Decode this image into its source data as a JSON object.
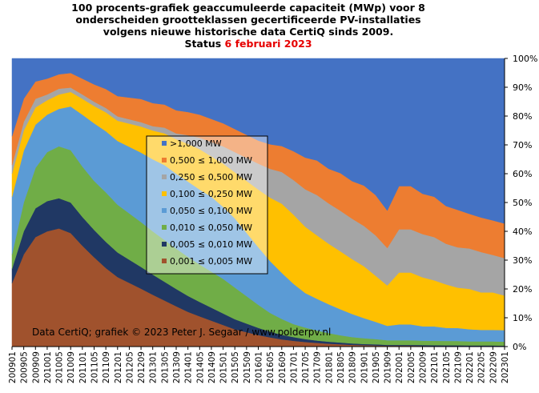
{
  "title": {
    "line1": "100 procents-grafiek geaccumuleerde capaciteit (MWp) voor 8",
    "line2": "onderscheiden grootteklassen gecertificeerde PV-installaties",
    "line3": "volgens nieuwe historische data CertiQ sinds 2009.",
    "status_prefix": "Status",
    "status_date": "6 februari 2023"
  },
  "credit": "Data CertiQ; grafiek © 2023 Peter J. Segaar / www.polderpv.nl",
  "chart_data": {
    "type": "area",
    "stacked": "percent",
    "x": [
      "200901",
      "200905",
      "200909",
      "201001",
      "201005",
      "201009",
      "201101",
      "201105",
      "201109",
      "201201",
      "201205",
      "201209",
      "201301",
      "201305",
      "201309",
      "201401",
      "201405",
      "201409",
      "201501",
      "201505",
      "201509",
      "201601",
      "201605",
      "201609",
      "201701",
      "201705",
      "201709",
      "201801",
      "201805",
      "201809",
      "201901",
      "201905",
      "201909",
      "202001",
      "202005",
      "202009",
      "202101",
      "202105",
      "202109",
      "202201",
      "202205",
      "202209",
      "202301"
    ],
    "ylim": [
      0,
      100
    ],
    "yticks": [
      "0%",
      "10%",
      "20%",
      "30%",
      "40%",
      "50%",
      "60%",
      "70%",
      "80%",
      "90%",
      "100%"
    ],
    "series": [
      {
        "name": "0,001 ≤  0,005 MW",
        "color": "#a0522d",
        "values": [
          22,
          32,
          38,
          40,
          41,
          39,
          35,
          31,
          27,
          24,
          22,
          20,
          18,
          16,
          14,
          12,
          10.5,
          9,
          7.5,
          6,
          5,
          4,
          3.2,
          2.5,
          2,
          1.6,
          1.3,
          1,
          0.8,
          0.6,
          0.5,
          0.4,
          0.3,
          0.3,
          0.3,
          0.25,
          0.2,
          0.2,
          0.2,
          0.15,
          0.15,
          0.15,
          0.1
        ]
      },
      {
        "name": "0,005 ≤  0,010 MW",
        "color": "#203864",
        "values": [
          5,
          8,
          10,
          10.5,
          10.5,
          10.5,
          10,
          9.5,
          9,
          8.5,
          8,
          7.5,
          7,
          6.5,
          6,
          5.5,
          5,
          4.5,
          4,
          3.5,
          3,
          2.5,
          2,
          1.6,
          1.3,
          1,
          0.8,
          0.7,
          0.6,
          0.5,
          0.4,
          0.4,
          0.3,
          0.3,
          0.3,
          0.3,
          0.3,
          0.25,
          0.25,
          0.25,
          0.25,
          0.25,
          0.2
        ]
      },
      {
        "name": "0,010 ≤  0,050 MW",
        "color": "#70ad47",
        "values": [
          5,
          10,
          14,
          17,
          18,
          18,
          17.5,
          17,
          17,
          16.5,
          16,
          15.5,
          15,
          14.5,
          14,
          13.5,
          13,
          12.5,
          12,
          11,
          9.5,
          8,
          6.5,
          5.5,
          4.5,
          4,
          3.5,
          3,
          2.5,
          2.2,
          2,
          1.8,
          1.6,
          1.6,
          1.6,
          1.5,
          1.5,
          1.5,
          1.5,
          1.4,
          1.4,
          1.4,
          1.4
        ]
      },
      {
        "name": "0,050 ≤  0,100 MW",
        "color": "#5b9bd5",
        "values": [
          20,
          18,
          15,
          13,
          13,
          15,
          18,
          20,
          21,
          22,
          23,
          24,
          25,
          26,
          26,
          26,
          26,
          26,
          25,
          24,
          22,
          20,
          18,
          16,
          14,
          12,
          11,
          10,
          9,
          8,
          7,
          6,
          5,
          5.5,
          5.5,
          5,
          5,
          4.5,
          4.5,
          4.2,
          4,
          4,
          4
        ]
      },
      {
        "name": "0,100 ≤  0,250 MW",
        "color": "#ffc000",
        "values": [
          8,
          7,
          6,
          5,
          5,
          5,
          5.5,
          6,
          6.5,
          7,
          8,
          9,
          10,
          11,
          12,
          13,
          14,
          14,
          15,
          16,
          18,
          20,
          22,
          24,
          24,
          23,
          22,
          21,
          20,
          19,
          18,
          16,
          14,
          18,
          18,
          17,
          16,
          15,
          14,
          14,
          13,
          13,
          12
        ]
      },
      {
        "name": "0,250 ≤  0,500 MW",
        "color": "#a5a5a5",
        "values": [
          3,
          3,
          3,
          2,
          2,
          1.5,
          1.5,
          1.5,
          1.5,
          1.5,
          1.5,
          1.5,
          1.5,
          2,
          2,
          3,
          4,
          5,
          6,
          7,
          8,
          9,
          10,
          11,
          12,
          13,
          14,
          14,
          14,
          14,
          14,
          14,
          13,
          15,
          15,
          15,
          15,
          14,
          14,
          14,
          14,
          13,
          13
        ]
      },
      {
        "name": "0,500 ≤  1,000 MW",
        "color": "#ed7d31",
        "values": [
          10,
          8,
          6,
          5.5,
          5,
          5,
          5.5,
          6,
          6.5,
          7,
          7.5,
          8,
          8,
          8,
          8,
          8,
          8,
          8,
          8,
          8,
          8,
          8,
          8.5,
          9,
          10,
          11,
          12,
          12,
          13,
          13,
          14,
          14,
          13,
          15,
          15,
          14,
          14,
          13,
          13,
          12,
          12,
          12,
          12
        ]
      },
      {
        "name": ">1,000 MW",
        "color": "#4472c4",
        "values": [
          27,
          14,
          8,
          7,
          5.5,
          5,
          7,
          9,
          10.5,
          13,
          13.5,
          14,
          15.5,
          16,
          18,
          18.5,
          19.5,
          21,
          22.5,
          24.5,
          26.5,
          28.5,
          29.8,
          30.4,
          32.2,
          34.4,
          35.4,
          38.3,
          39.6,
          42.5,
          44.1,
          47.4,
          52.8,
          44.3,
          44.3,
          46.95,
          48,
          50.85,
          52.55,
          53.85,
          55.2,
          56.2,
          57.3
        ]
      }
    ],
    "legend_position": "center-left",
    "grid": false
  }
}
